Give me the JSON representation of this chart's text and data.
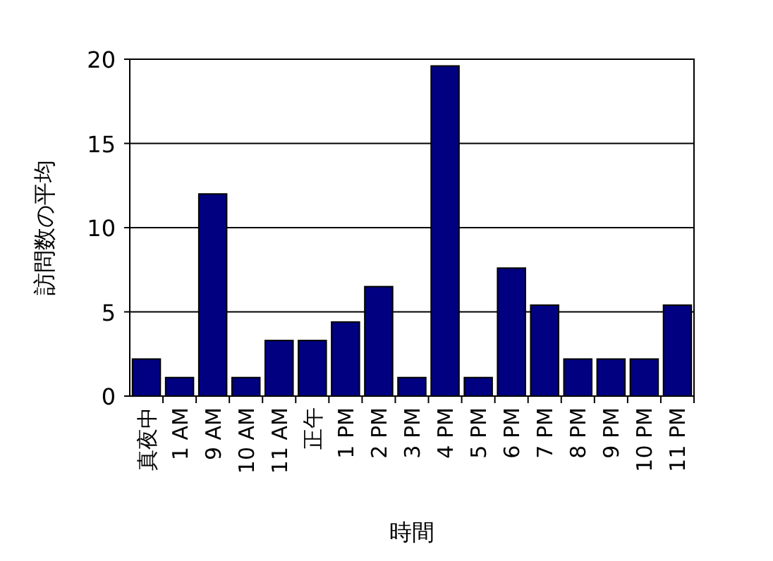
{
  "chart_data": {
    "type": "bar",
    "xlabel": "時間",
    "ylabel": "訪問数の平均",
    "categories": [
      "真夜中",
      "1 AM",
      "9 AM",
      "10 AM",
      "11 AM",
      "正午",
      "1 PM",
      "2 PM",
      "3 PM",
      "4 PM",
      "5 PM",
      "6 PM",
      "7 PM",
      "8 PM",
      "9 PM",
      "10 PM",
      "11 PM"
    ],
    "values": [
      2.2,
      1.1,
      12.0,
      1.1,
      3.3,
      3.3,
      4.4,
      6.5,
      1.1,
      19.6,
      1.1,
      7.6,
      5.4,
      2.2,
      2.2,
      2.2,
      5.4
    ],
    "color": "#000080",
    "ylim": [
      0,
      20
    ],
    "yticks": [
      0,
      5,
      10,
      15,
      20
    ],
    "grid": "y"
  }
}
